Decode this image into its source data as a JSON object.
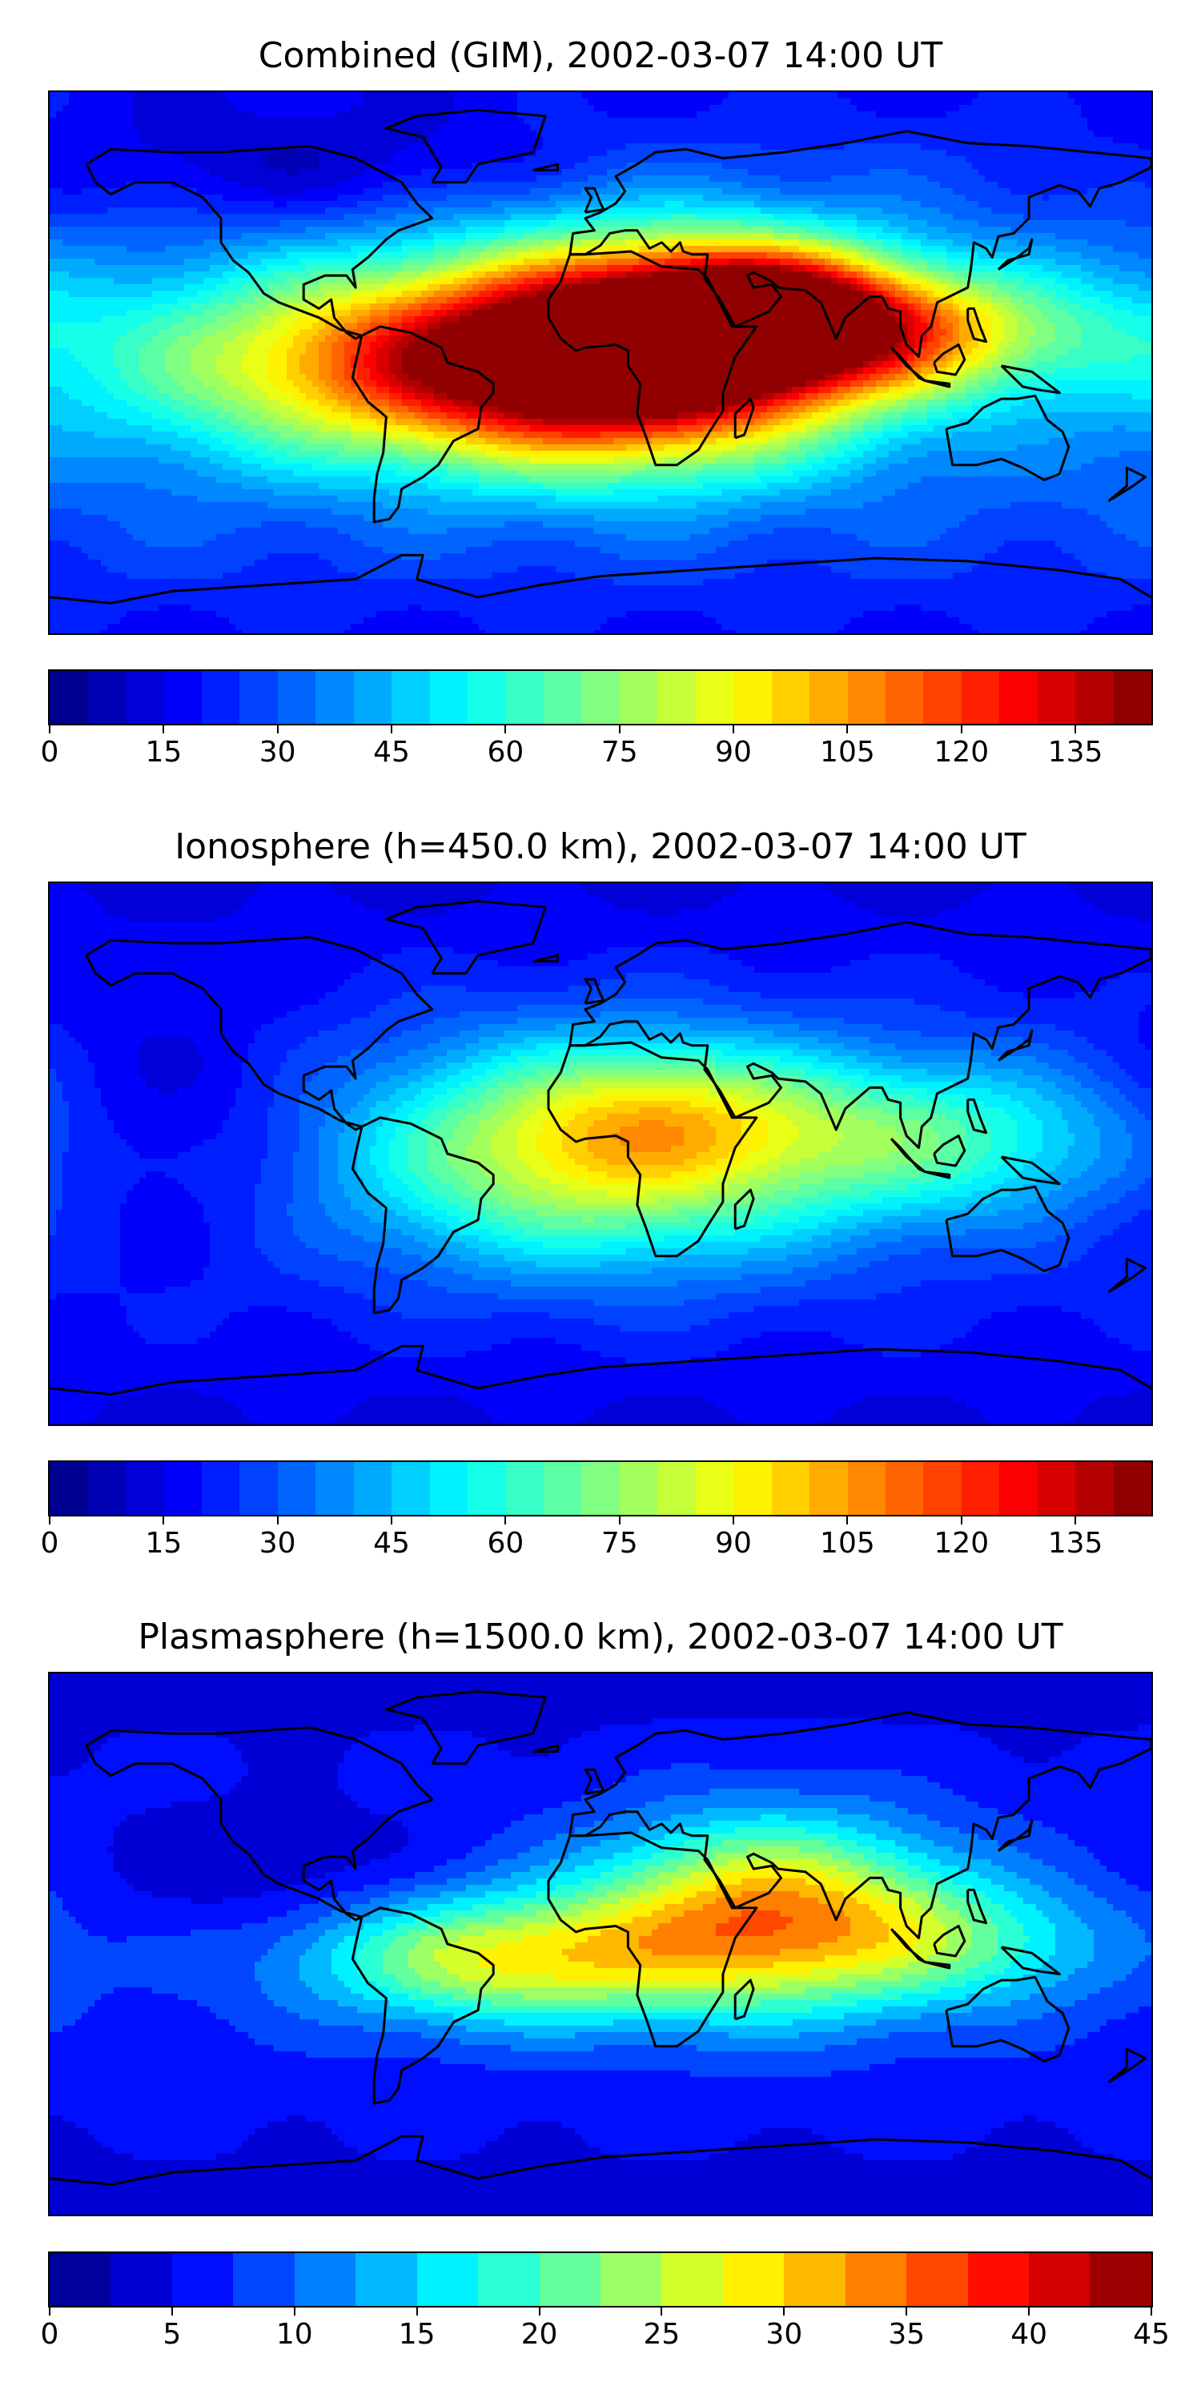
{
  "panels": [
    {
      "title": "Combined (GIM), 2002-03-07 14:00 UT",
      "colorbar": {
        "min": 0,
        "max": 145,
        "bins": 29,
        "ticks": [
          "0",
          "15",
          "30",
          "45",
          "60",
          "75",
          "90",
          "105",
          "120",
          "135"
        ],
        "tick_values": [
          0,
          15,
          30,
          45,
          60,
          75,
          90,
          105,
          120,
          135
        ]
      },
      "field": {
        "base": 35,
        "features": [
          {
            "lon": -40,
            "lat": 0,
            "value": 90,
            "sx": 70,
            "sy": 22
          },
          {
            "lon": 15,
            "lat": 5,
            "value": 90,
            "sx": 45,
            "sy": 25
          },
          {
            "lon": 55,
            "lat": 18,
            "value": 70,
            "sx": 30,
            "sy": 15
          },
          {
            "lon": 100,
            "lat": 10,
            "value": 55,
            "sx": 45,
            "sy": 15
          },
          {
            "lon": -100,
            "lat": 65,
            "value": -15,
            "sx": 60,
            "sy": 15
          }
        ]
      }
    },
    {
      "title": "Ionosphere  (h=450.0 km), 2002-03-07 14:00 UT",
      "colorbar": {
        "min": 0,
        "max": 145,
        "bins": 29,
        "ticks": [
          "0",
          "15",
          "30",
          "45",
          "60",
          "75",
          "90",
          "105",
          "120",
          "135"
        ],
        "tick_values": [
          0,
          15,
          30,
          45,
          60,
          75,
          90,
          105,
          120,
          135
        ]
      },
      "field": {
        "base": 25,
        "features": [
          {
            "lon": 0,
            "lat": 0,
            "value": 65,
            "sx": 55,
            "sy": 25
          },
          {
            "lon": 25,
            "lat": 15,
            "value": 20,
            "sx": 35,
            "sy": 15
          },
          {
            "lon": 110,
            "lat": 5,
            "value": 35,
            "sx": 45,
            "sy": 18
          },
          {
            "lon": -140,
            "lat": 10,
            "value": -12,
            "sx": 35,
            "sy": 30
          }
        ]
      }
    },
    {
      "title": "Plasmasphere (h=1500.0 km), 2002-03-07 14:00 UT",
      "colorbar": {
        "min": 0,
        "max": 45,
        "bins": 18,
        "ticks": [
          "0",
          "5",
          "10",
          "15",
          "20",
          "25",
          "30",
          "35",
          "40",
          "45"
        ],
        "tick_values": [
          0,
          5,
          10,
          15,
          20,
          25,
          30,
          35,
          40,
          45
        ]
      },
      "field": {
        "base": 7,
        "features": [
          {
            "lon": -30,
            "lat": -5,
            "value": 20,
            "sx": 45,
            "sy": 15
          },
          {
            "lon": 55,
            "lat": 10,
            "value": 25,
            "sx": 40,
            "sy": 22
          },
          {
            "lon": 120,
            "lat": 0,
            "value": 10,
            "sx": 35,
            "sy": 15
          },
          {
            "lon": -110,
            "lat": 25,
            "value": -4,
            "sx": 40,
            "sy": 15
          }
        ]
      }
    }
  ]
}
